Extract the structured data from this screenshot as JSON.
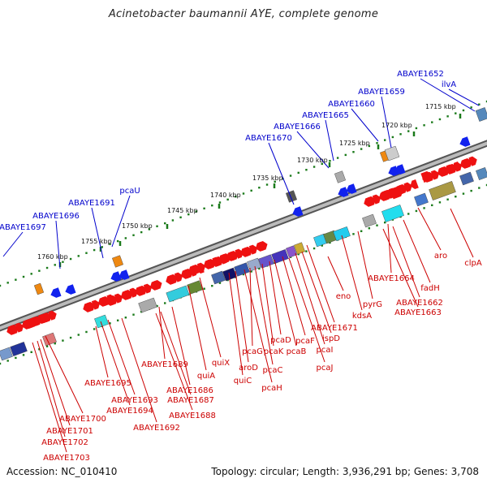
{
  "title": "Acinetobacter baumannii AYE, complete genome",
  "footer": {
    "accession": "Accession: NC_010410",
    "summary": "Topology: circular; Length: 3,936,291 bp; Genes: 3,708"
  },
  "colors": {
    "forward_gene": "#ee1111",
    "reverse_gene": "#1122ee",
    "dots": "#1a7a1a",
    "backbone": "#888888",
    "blue_label": "#0000cc",
    "red_label": "#cc0000"
  },
  "ticks": [
    "1715 kbp",
    "1720 kbp",
    "1725 kbp",
    "1730 kbp",
    "1735 kbp",
    "1740 kbp",
    "1745 kbp",
    "1750 kbp",
    "1755 kbp",
    "1760 kbp"
  ],
  "top_labels": [
    "ilvA",
    "ABAYE1652",
    "ABAYE1659",
    "ABAYE1660",
    "ABAYE1665",
    "ABAYE1666",
    "ABAYE1670",
    "pcaU",
    "ABAYE1691",
    "ABAYE1696",
    "ABAYE1697"
  ],
  "bottom_labels": [
    "aro",
    "clpA",
    "fadH",
    "ABAYE1664",
    "ABAYE1662",
    "ABAYE1663",
    "pyrG",
    "kdsA",
    "eno",
    "ABAYE1671",
    "ispD",
    "pcaI",
    "pcaJ",
    "pcaF",
    "pcaB",
    "pcaD",
    "pcaK",
    "pcaG",
    "pcaC",
    "aroD",
    "pcaH",
    "quiX",
    "quiA",
    "quiC",
    "ABAYE1689",
    "ABAYE1686",
    "ABAYE1687",
    "ABAYE1688",
    "ABAYE1692",
    "ABAYE1693",
    "ABAYE1694",
    "ABAYE1695",
    "ABAYE1700",
    "ABAYE1701",
    "ABAYE1702",
    "ABAYE1703"
  ]
}
